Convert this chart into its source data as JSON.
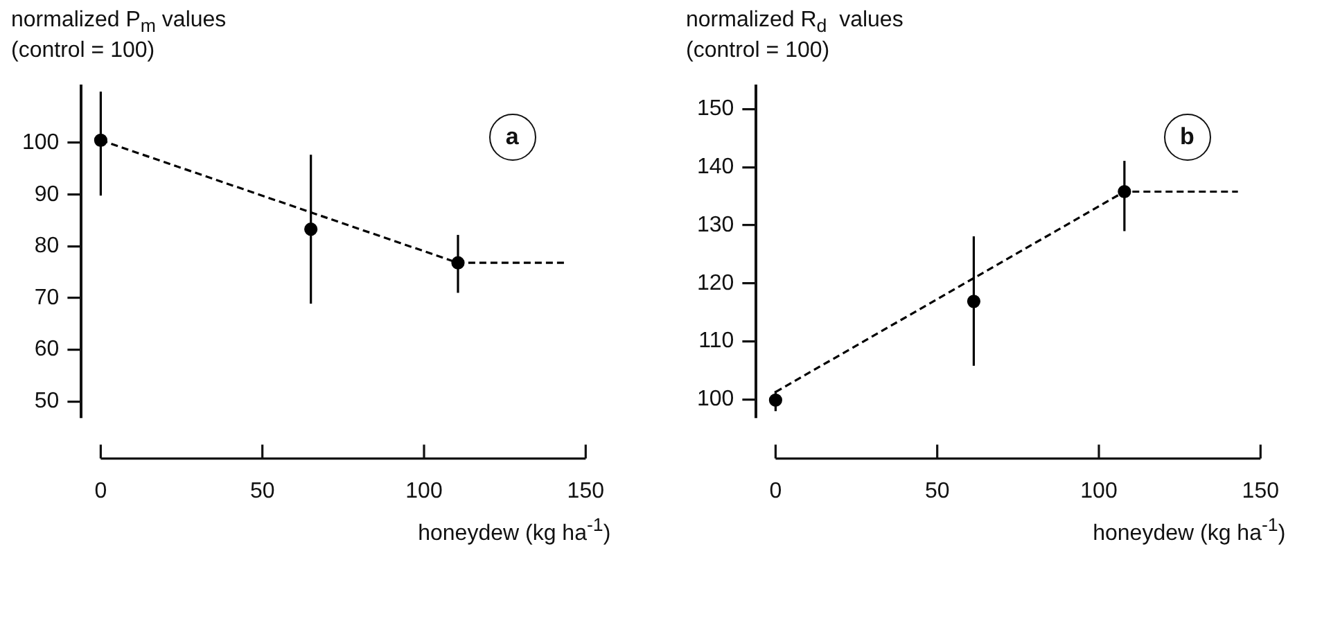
{
  "chart_data": [
    {
      "type": "scatter",
      "ylabel": "normalized P$_{m}$ values\n(control = 100)",
      "xlabel": "honeydew (kg ha$^{-1}$)",
      "annotations": [
        "a"
      ],
      "xlim": [
        -6,
        150
      ],
      "xticks": [
        0,
        50,
        100,
        150
      ],
      "ylim": [
        47,
        111
      ],
      "yticks": [
        50,
        60,
        70,
        80,
        90,
        100
      ],
      "grid": false,
      "legend": false,
      "series": [
        {
          "type": "scatter",
          "color": "#000000",
          "marker": "circle",
          "x": [
            0,
            65,
            110.5
          ],
          "values": [
            100.5,
            83.3,
            76.8
          ],
          "errors": [
            [
              89.8,
              109.9
            ],
            [
              68.9,
              97.7
            ],
            [
              71.0,
              82.2
            ]
          ]
        },
        {
          "type": "line",
          "color": "#000000",
          "marker": "none",
          "line_style": "dashed",
          "x": [
            0,
            110.5,
            144
          ],
          "values": [
            100.5,
            76.8,
            76.8
          ]
        }
      ]
    },
    {
      "type": "scatter",
      "ylabel": "normalized R$_{d}$  values\n(control = 100)",
      "xlabel": "honeydew (kg ha$^{-1}$)",
      "annotations": [
        "b"
      ],
      "xlim": [
        -6,
        150
      ],
      "xticks": [
        0,
        50,
        100,
        150
      ],
      "ylim": [
        97,
        154
      ],
      "yticks": [
        100,
        110,
        120,
        130,
        140,
        150
      ],
      "grid": false,
      "legend": false,
      "series": [
        {
          "type": "scatter",
          "color": "#000000",
          "marker": "circle",
          "x": [
            0,
            61.3,
            107.9
          ],
          "values": [
            99.9,
            116.9,
            135.8
          ],
          "errors": [
            [
              98,
              101.5
            ],
            [
              105.8,
              128.1
            ],
            [
              129.0,
              141.1
            ]
          ]
        },
        {
          "type": "line",
          "color": "#000000",
          "marker": "none",
          "line_style": "dashed",
          "x": [
            0,
            107.9,
            143
          ],
          "values": [
            101.3,
            135.8,
            135.8
          ]
        }
      ]
    }
  ]
}
